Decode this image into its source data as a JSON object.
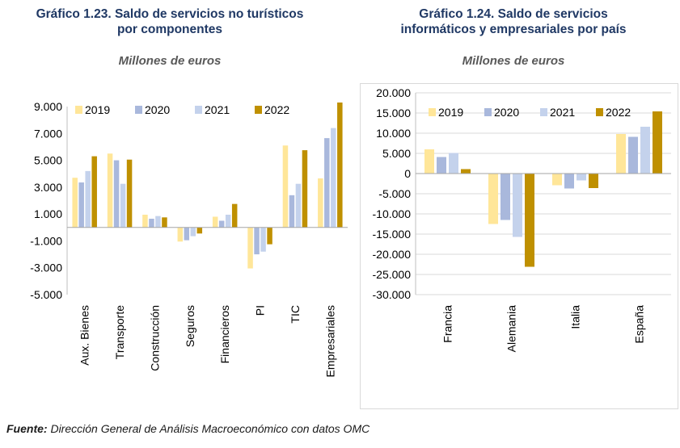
{
  "colors": {
    "2019": "#ffe699",
    "2020": "#a9b8dc",
    "2021": "#c4d2ec",
    "2022": "#bf9000"
  },
  "chart_data": [
    {
      "type": "bar",
      "title": "Gráfico 1.23. Saldo de servicios no turísticos por componentes",
      "title_lines": [
        "Gráfico 1.23. Saldo de servicios no turísticos",
        "por componentes"
      ],
      "subtitle": "Millones de euros",
      "categories": [
        "Aux. Bienes",
        "Transporte",
        "Construcción",
        "Seguros",
        "Financieros",
        "PI",
        "TIC",
        "Empresariales"
      ],
      "series": [
        {
          "name": "2019",
          "values": [
            3700,
            5500,
            950,
            -1050,
            800,
            -3050,
            6100,
            3650
          ]
        },
        {
          "name": "2020",
          "values": [
            3350,
            5000,
            650,
            -950,
            500,
            -2000,
            2400,
            6650
          ]
        },
        {
          "name": "2021",
          "values": [
            4200,
            3250,
            850,
            -650,
            950,
            -1800,
            3250,
            7400
          ]
        },
        {
          "name": "2022",
          "values": [
            5300,
            5050,
            750,
            -450,
            1750,
            -1250,
            5750,
            9300
          ]
        }
      ],
      "ylim": [
        -5000,
        9000
      ],
      "yticks": [
        -5000,
        -3000,
        -1000,
        1000,
        3000,
        5000,
        7000,
        9000
      ],
      "ytick_labels": [
        "-5.000",
        "-3.000",
        "-1.000",
        "1.000",
        "3.000",
        "5.000",
        "7.000",
        "9.000"
      ],
      "grid": false,
      "legend": "top"
    },
    {
      "type": "bar",
      "title": "Gráfico 1.24. Saldo de servicios informáticos y empresariales por país",
      "title_lines": [
        "Gráfico 1.24. Saldo de servicios",
        "informáticos y empresariales por país"
      ],
      "subtitle": "Millones de euros",
      "categories": [
        "Francia",
        "Alemania",
        "Italia",
        "España"
      ],
      "series": [
        {
          "name": "2019",
          "values": [
            6000,
            -12500,
            -2900,
            9800
          ]
        },
        {
          "name": "2020",
          "values": [
            4100,
            -11500,
            -3700,
            9100
          ]
        },
        {
          "name": "2021",
          "values": [
            5100,
            -15700,
            -1700,
            11600
          ]
        },
        {
          "name": "2022",
          "values": [
            1100,
            -23100,
            -3600,
            15400
          ]
        }
      ],
      "ylim": [
        -30000,
        20000
      ],
      "yticks": [
        -30000,
        -25000,
        -20000,
        -15000,
        -10000,
        -5000,
        0,
        5000,
        10000,
        15000,
        20000
      ],
      "ytick_labels": [
        "-30.000",
        "-25.000",
        "-20.000",
        "-15.000",
        "-10.000",
        "-5.000",
        "0",
        "5.000",
        "10.000",
        "15.000",
        "20.000"
      ],
      "grid": true,
      "legend": "top"
    }
  ],
  "source": {
    "label": "Fuente:",
    "text": "Dirección General de Análisis Macroeconómico con datos OMC"
  }
}
